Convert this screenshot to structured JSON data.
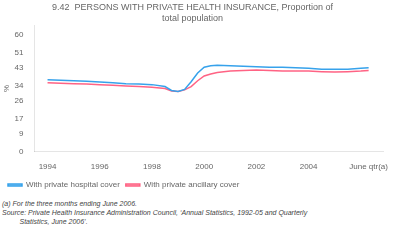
{
  "chart_data": {
    "type": "line",
    "title": [
      "9.42  PERSONS WITH PRIVATE HEALTH INSURANCE, Proportion of",
      "total population"
    ],
    "y_label": "%",
    "x": [
      1994,
      1994.5,
      1995,
      1995.5,
      1996,
      1996.5,
      1997,
      1997.5,
      1998,
      1998.5,
      1998.75,
      1999,
      1999.25,
      1999.5,
      1999.75,
      2000,
      2000.25,
      2000.5,
      2001,
      2001.5,
      2002,
      2002.5,
      2003,
      2003.5,
      2004,
      2004.5,
      2005,
      2005.5,
      2006,
      2006.3
    ],
    "series": [
      {
        "name": "With private hospital cover",
        "values": [
          37.0,
          36.8,
          36.5,
          36.2,
          35.8,
          35.5,
          35.0,
          34.8,
          34.5,
          33.5,
          31.5,
          31.0,
          32.0,
          36.0,
          40.5,
          43.5,
          44.2,
          44.5,
          44.2,
          44.0,
          43.8,
          43.5,
          43.5,
          43.2,
          43.0,
          42.5,
          42.5,
          42.5,
          43.0,
          43.2
        ]
      },
      {
        "name": "With private ancillary cover",
        "values": [
          35.5,
          35.2,
          35.0,
          34.8,
          34.5,
          34.2,
          33.8,
          33.5,
          33.2,
          32.5,
          31.2,
          31.0,
          31.8,
          33.5,
          36.5,
          39.0,
          40.0,
          40.8,
          41.5,
          41.8,
          42.0,
          41.8,
          41.5,
          41.5,
          41.5,
          41.2,
          41.0,
          41.2,
          41.5,
          41.8
        ]
      }
    ],
    "xlim": [
      1993.5,
      2006.85
    ],
    "xticks": [
      1994,
      1996,
      1998,
      2000,
      2002,
      2004,
      {
        "value": 2006.3,
        "label": "June qtr(a)"
      }
    ],
    "ylim": [
      0,
      65
    ],
    "yticks": [
      0,
      9,
      17,
      26,
      34,
      43,
      51,
      60
    ],
    "grid": false,
    "legend": "lower left",
    "annotations": [
      "(a) For the three months ending June 2006.",
      "Source: Private Health Insurance Administration Council, ‘Annual Statistics, 1992-05 and Quarterly",
      "         Statistics, June 2006’."
    ]
  }
}
